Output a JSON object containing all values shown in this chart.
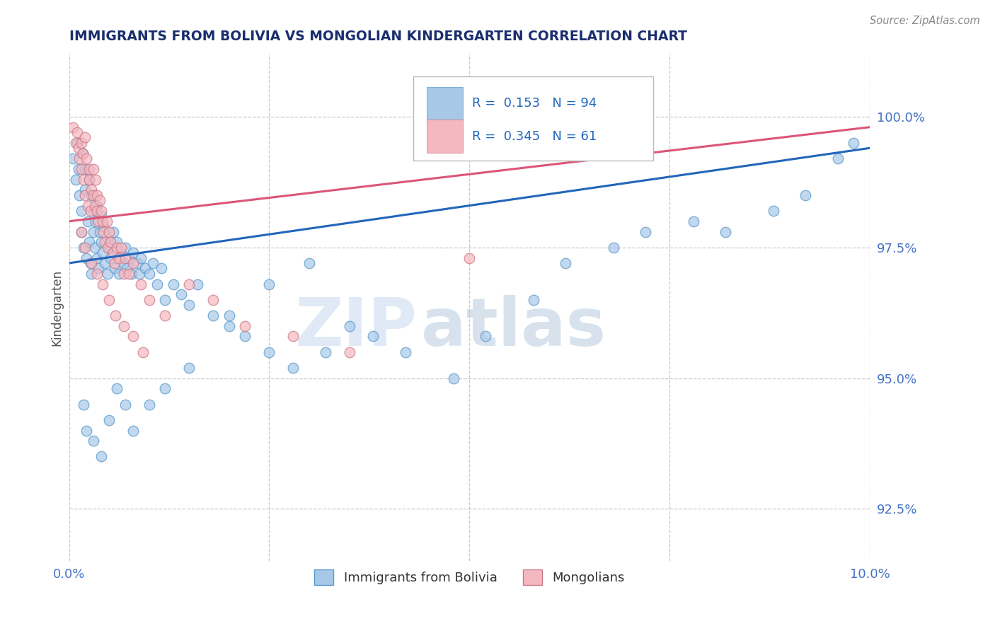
{
  "title": "IMMIGRANTS FROM BOLIVIA VS MONGOLIAN KINDERGARTEN CORRELATION CHART",
  "source_text": "Source: ZipAtlas.com",
  "ylabel": "Kindergarten",
  "xlim": [
    0.0,
    10.0
  ],
  "ylim": [
    91.5,
    101.2
  ],
  "yticks": [
    92.5,
    95.0,
    97.5,
    100.0
  ],
  "yticklabels": [
    "92.5%",
    "95.0%",
    "97.5%",
    "100.0%"
  ],
  "blue_R": 0.153,
  "blue_N": 94,
  "pink_R": 0.345,
  "pink_N": 61,
  "blue_color": "#a8c8e8",
  "pink_color": "#f4b8c0",
  "blue_edge_color": "#5599cc",
  "pink_edge_color": "#cc7788",
  "blue_line_color": "#2266bb",
  "pink_line_color": "#dd5577",
  "legend_label_blue": "Immigrants from Bolivia",
  "legend_label_pink": "Mongolians",
  "background_color": "#ffffff",
  "grid_color": "#bbbbbb",
  "title_color": "#1a2e6e",
  "axis_label_color": "#4472c4",
  "watermark_zip": "ZIP",
  "watermark_atlas": "atlas",
  "blue_x": [
    0.05,
    0.08,
    0.1,
    0.12,
    0.13,
    0.15,
    0.15,
    0.17,
    0.18,
    0.2,
    0.2,
    0.22,
    0.23,
    0.25,
    0.25,
    0.27,
    0.28,
    0.28,
    0.3,
    0.3,
    0.32,
    0.33,
    0.35,
    0.35,
    0.37,
    0.38,
    0.4,
    0.4,
    0.42,
    0.43,
    0.45,
    0.47,
    0.48,
    0.5,
    0.52,
    0.55,
    0.57,
    0.6,
    0.62,
    0.65,
    0.68,
    0.7,
    0.72,
    0.75,
    0.78,
    0.8,
    0.85,
    0.88,
    0.9,
    0.95,
    1.0,
    1.05,
    1.1,
    1.15,
    1.2,
    1.3,
    1.4,
    1.5,
    1.6,
    1.8,
    2.0,
    2.2,
    2.5,
    2.8,
    3.2,
    3.5,
    3.8,
    4.2,
    4.8,
    5.2,
    5.8,
    6.2,
    6.8,
    7.2,
    7.8,
    8.2,
    8.8,
    9.2,
    9.6,
    9.8,
    0.18,
    0.22,
    0.3,
    0.4,
    0.5,
    0.6,
    0.7,
    0.8,
    1.0,
    1.2,
    1.5,
    2.0,
    2.5,
    3.0
  ],
  "blue_y": [
    99.2,
    98.8,
    99.5,
    99.0,
    98.5,
    97.8,
    98.2,
    99.3,
    97.5,
    99.0,
    98.6,
    97.3,
    98.0,
    97.6,
    98.8,
    97.2,
    98.5,
    97.0,
    98.2,
    97.8,
    97.5,
    98.0,
    97.3,
    98.3,
    97.1,
    97.8,
    97.6,
    98.1,
    97.4,
    97.9,
    97.2,
    97.7,
    97.0,
    97.5,
    97.3,
    97.8,
    97.1,
    97.6,
    97.0,
    97.4,
    97.2,
    97.5,
    97.1,
    97.3,
    97.0,
    97.4,
    97.2,
    97.0,
    97.3,
    97.1,
    97.0,
    97.2,
    96.8,
    97.1,
    96.5,
    96.8,
    96.6,
    96.4,
    96.8,
    96.2,
    96.0,
    95.8,
    95.5,
    95.2,
    95.5,
    96.0,
    95.8,
    95.5,
    95.0,
    95.8,
    96.5,
    97.2,
    97.5,
    97.8,
    98.0,
    97.8,
    98.2,
    98.5,
    99.2,
    99.5,
    94.5,
    94.0,
    93.8,
    93.5,
    94.2,
    94.8,
    94.5,
    94.0,
    94.5,
    94.8,
    95.2,
    96.2,
    96.8,
    97.2
  ],
  "pink_x": [
    0.05,
    0.08,
    0.1,
    0.12,
    0.13,
    0.15,
    0.15,
    0.17,
    0.18,
    0.2,
    0.2,
    0.22,
    0.23,
    0.25,
    0.25,
    0.27,
    0.28,
    0.3,
    0.3,
    0.32,
    0.33,
    0.35,
    0.35,
    0.37,
    0.38,
    0.4,
    0.42,
    0.43,
    0.45,
    0.47,
    0.48,
    0.5,
    0.52,
    0.55,
    0.57,
    0.6,
    0.62,
    0.65,
    0.68,
    0.7,
    0.75,
    0.8,
    0.9,
    1.0,
    1.2,
    1.5,
    1.8,
    2.2,
    2.8,
    3.5,
    0.15,
    0.2,
    0.28,
    0.35,
    0.42,
    0.5,
    0.58,
    0.68,
    0.8,
    0.92,
    5.0
  ],
  "pink_y": [
    99.8,
    99.5,
    99.7,
    99.4,
    99.2,
    99.0,
    99.5,
    99.3,
    98.8,
    99.6,
    98.5,
    99.2,
    98.3,
    98.8,
    99.0,
    98.2,
    98.6,
    98.5,
    99.0,
    98.3,
    98.8,
    98.2,
    98.5,
    98.0,
    98.4,
    98.2,
    98.0,
    97.8,
    97.6,
    98.0,
    97.5,
    97.8,
    97.6,
    97.4,
    97.2,
    97.5,
    97.3,
    97.5,
    97.0,
    97.3,
    97.0,
    97.2,
    96.8,
    96.5,
    96.2,
    96.8,
    96.5,
    96.0,
    95.8,
    95.5,
    97.8,
    97.5,
    97.2,
    97.0,
    96.8,
    96.5,
    96.2,
    96.0,
    95.8,
    95.5,
    97.3
  ]
}
